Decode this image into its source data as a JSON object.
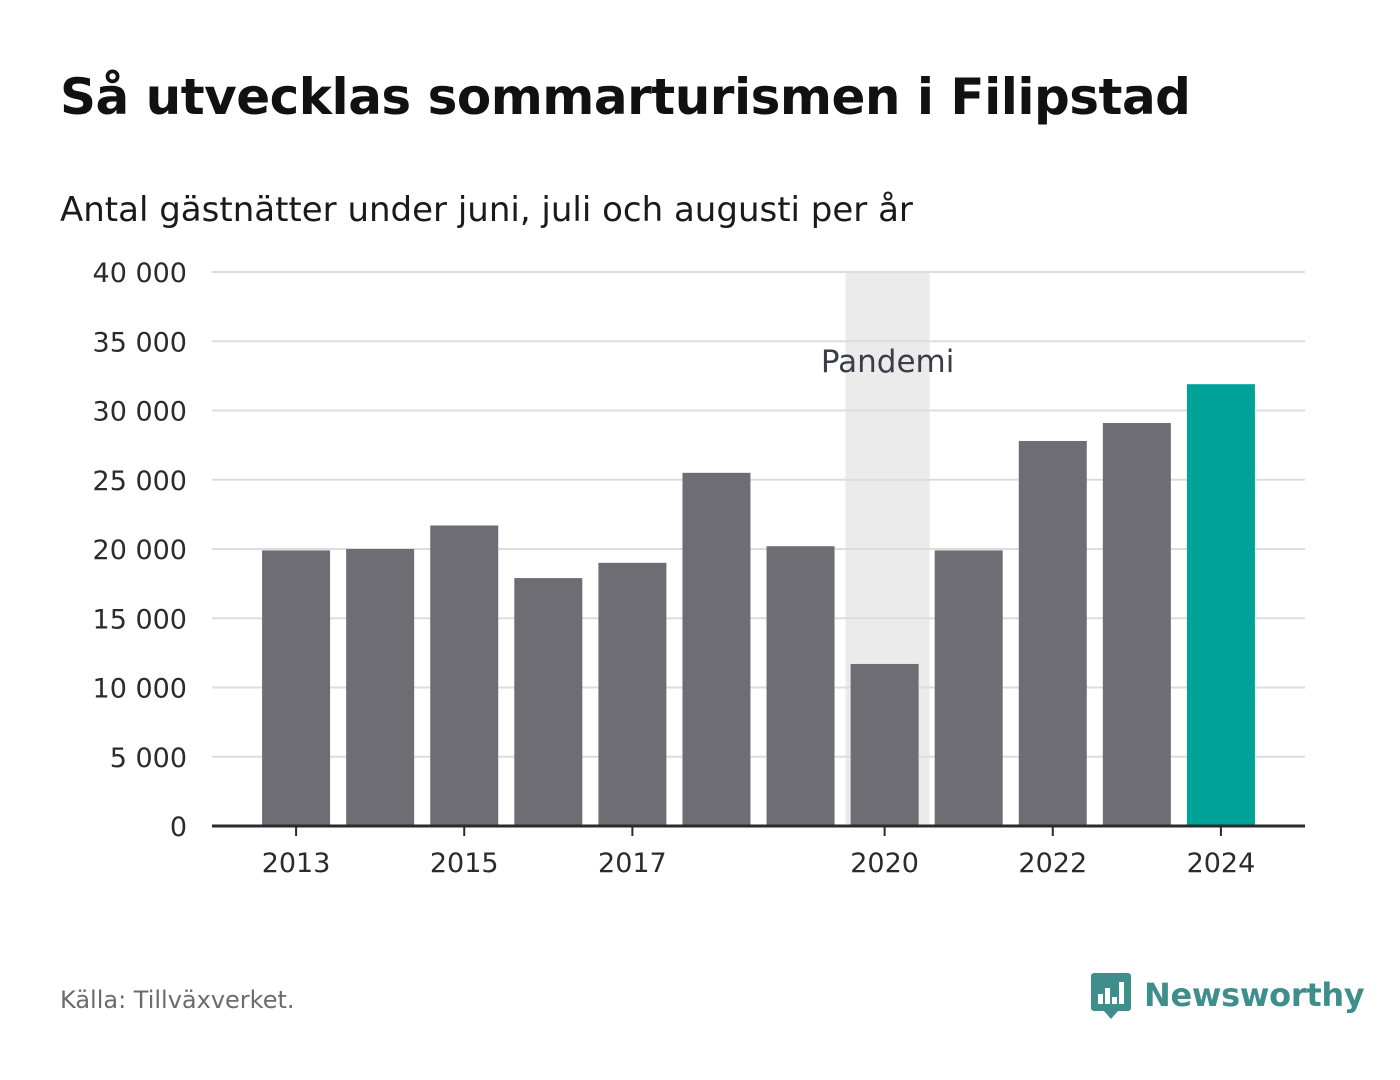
{
  "header": {
    "title": "Så utvecklas sommarturismen i Filipstad",
    "subtitle": "Antal gästnätter under juni, juli och augusti per år"
  },
  "footer": {
    "source": "Källa: Tillväxverket.",
    "brand": "Newsworthy",
    "brand_icon": "newsworthy-logo-icon"
  },
  "colors": {
    "bar": "#6e6d73",
    "highlight": "#00a29a",
    "band": "#ebebeb",
    "grid": "#dddddd",
    "axis": "#2b2b2b"
  },
  "chart_data": {
    "type": "bar",
    "title": "Så utvecklas sommarturismen i Filipstad",
    "subtitle": "Antal gästnätter under juni, juli och augusti per år",
    "categories": [
      2013,
      2014,
      2015,
      2016,
      2017,
      2018,
      2019,
      2020,
      2021,
      2022,
      2023,
      2024
    ],
    "values": [
      19900,
      20000,
      21700,
      17900,
      19000,
      25500,
      20200,
      11700,
      19900,
      27800,
      29100,
      31900
    ],
    "highlight_category": 2024,
    "x_tick_labels": [
      "2013",
      "2015",
      "2017",
      "2020",
      "2022",
      "2024"
    ],
    "y_ticks": [
      0,
      5000,
      10000,
      15000,
      20000,
      25000,
      30000,
      35000,
      40000
    ],
    "y_tick_labels": [
      "0",
      "5 000",
      "10 000",
      "15 000",
      "20 000",
      "25 000",
      "30 000",
      "35 000",
      "40 000"
    ],
    "ylim": [
      0,
      40000
    ],
    "xlabel": "",
    "ylabel": "",
    "grid": true,
    "shaded_band": {
      "label": "Pandemi",
      "from": 2020,
      "to": 2021
    }
  }
}
